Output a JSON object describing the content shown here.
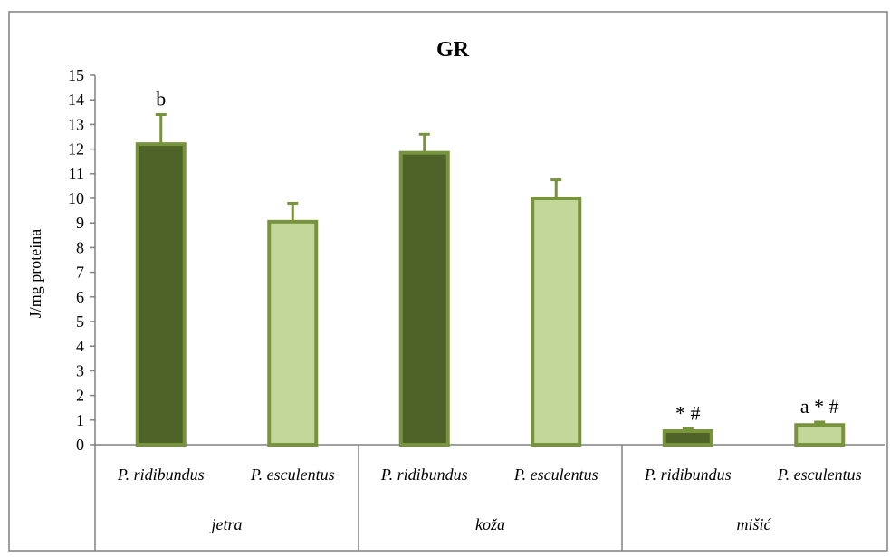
{
  "chart_data": {
    "type": "bar",
    "title": "GR",
    "xlabel": "",
    "ylabel": "J/mg  proteina",
    "ylim": [
      0,
      15
    ],
    "yticks": [
      0,
      1,
      2,
      3,
      4,
      5,
      6,
      7,
      8,
      9,
      10,
      11,
      12,
      13,
      14,
      15
    ],
    "grid": false,
    "legend": "none",
    "groups": [
      "jetra",
      "koža",
      "mišić"
    ],
    "categories": [
      "P. ridibundus",
      "P. esculentus",
      "P. ridibundus",
      "P. esculentus",
      "P. ridibundus",
      "P. esculentus"
    ],
    "values": [
      12.2,
      9.05,
      11.85,
      10.0,
      0.55,
      0.8
    ],
    "errors": [
      1.2,
      0.75,
      0.75,
      0.75,
      0.1,
      0.12
    ],
    "annotations": [
      "b",
      "",
      "",
      "",
      "* #",
      "a * #"
    ],
    "bar_colors": [
      "#4f6228",
      "#c4d79b",
      "#4f6228",
      "#c4d79b",
      "#4f6228",
      "#c4d79b"
    ],
    "bar_edge_color": "#77933c",
    "error_color": "#77933c"
  }
}
